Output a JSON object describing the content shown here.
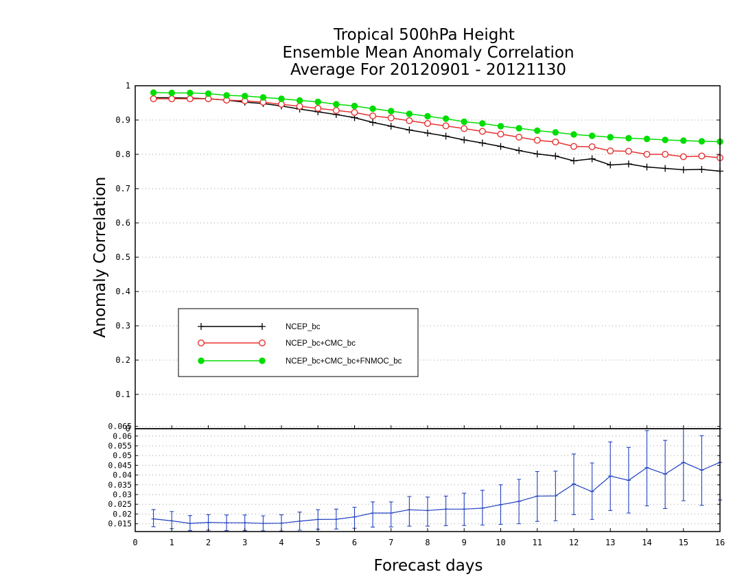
{
  "chart_data": [
    {
      "type": "line",
      "title_lines": [
        "Tropical 500hPa Height",
        "Ensemble Mean Anomaly Correlation",
        "Average For 20120901 - 20121130"
      ],
      "xlabel": "Forecast days",
      "ylabel": "Anomaly Correlation",
      "xlim": [
        0,
        16
      ],
      "ylim": [
        0,
        1
      ],
      "xticks": [
        "0",
        "1",
        "2",
        "3",
        "4",
        "5",
        "6",
        "7",
        "8",
        "9",
        "10",
        "11",
        "12",
        "13",
        "14",
        "15",
        "16"
      ],
      "yticks": [
        "0",
        "0.1",
        "0.2",
        "0.3",
        "0.4",
        "0.5",
        "0.6",
        "0.7",
        "0.8",
        "0.9",
        "1"
      ],
      "grid": true,
      "legend_position": "lower-left",
      "x": [
        0.5,
        1,
        1.5,
        2,
        2.5,
        3,
        3.5,
        4,
        4.5,
        5,
        5.5,
        6,
        6.5,
        7,
        7.5,
        8,
        8.5,
        9,
        9.5,
        10,
        10.5,
        11,
        11.5,
        12,
        12.5,
        13,
        13.5,
        14,
        14.5,
        15,
        15.5,
        16
      ],
      "series": [
        {
          "name": "NCEP_bc",
          "color": "#000000",
          "marker": "plus",
          "values": [
            0.965,
            0.965,
            0.964,
            0.962,
            0.958,
            0.952,
            0.948,
            0.941,
            0.932,
            0.924,
            0.916,
            0.907,
            0.893,
            0.882,
            0.871,
            0.862,
            0.853,
            0.842,
            0.833,
            0.823,
            0.811,
            0.801,
            0.795,
            0.781,
            0.787,
            0.769,
            0.772,
            0.763,
            0.759,
            0.755,
            0.756,
            0.751
          ]
        },
        {
          "name": "NCEP_bc+CMC_bc",
          "color": "#e83030",
          "marker": "open-circle",
          "values": [
            0.962,
            0.962,
            0.962,
            0.962,
            0.958,
            0.956,
            0.952,
            0.946,
            0.94,
            0.934,
            0.928,
            0.922,
            0.912,
            0.906,
            0.898,
            0.89,
            0.883,
            0.875,
            0.867,
            0.859,
            0.85,
            0.841,
            0.836,
            0.823,
            0.822,
            0.81,
            0.809,
            0.8,
            0.8,
            0.793,
            0.795,
            0.79
          ]
        },
        {
          "name": "NCEP_bc+CMC_bc+FNMOC_bc",
          "color": "#00dd00",
          "marker": "filled-circle",
          "values": [
            0.98,
            0.979,
            0.979,
            0.977,
            0.972,
            0.97,
            0.966,
            0.962,
            0.957,
            0.953,
            0.946,
            0.941,
            0.933,
            0.926,
            0.918,
            0.911,
            0.904,
            0.895,
            0.89,
            0.882,
            0.876,
            0.869,
            0.864,
            0.858,
            0.854,
            0.85,
            0.847,
            0.845,
            0.842,
            0.84,
            0.838,
            0.837
          ]
        }
      ]
    },
    {
      "type": "line",
      "xlim": [
        0,
        16
      ],
      "ylim": [
        0.011,
        0.0638
      ],
      "yticks": [
        "0.015",
        "0.02",
        "0.025",
        "0.03",
        "0.035",
        "0.04",
        "0.045",
        "0.05",
        "0.055",
        "0.06",
        "0.065"
      ],
      "grid": true,
      "x": [
        0.5,
        1,
        1.5,
        2,
        2.5,
        3,
        3.5,
        4,
        4.5,
        5,
        5.5,
        6,
        6.5,
        7,
        7.5,
        8,
        8.5,
        9,
        9.5,
        10,
        10.5,
        11,
        11.5,
        12,
        12.5,
        13,
        13.5,
        14,
        14.5,
        15,
        15.5,
        16
      ],
      "series": [
        {
          "color": "#2040c0",
          "marker": "error-bars",
          "values": [
            0.0175,
            0.0165,
            0.0152,
            0.0157,
            0.0155,
            0.0155,
            0.0152,
            0.0153,
            0.0163,
            0.0172,
            0.0173,
            0.0185,
            0.0205,
            0.0205,
            0.0222,
            0.0218,
            0.0225,
            0.0225,
            0.023,
            0.0248,
            0.0265,
            0.0292,
            0.0293,
            0.0354,
            0.0315,
            0.0395,
            0.0373,
            0.0438,
            0.0405,
            0.0465,
            0.0425,
            0.0465
          ],
          "error_low": [
            0.0135,
            0.0125,
            0.0115,
            0.0117,
            0.0115,
            0.0115,
            0.0114,
            0.0113,
            0.0117,
            0.0122,
            0.0123,
            0.0127,
            0.0133,
            0.0134,
            0.0138,
            0.0138,
            0.014,
            0.0141,
            0.0143,
            0.0147,
            0.015,
            0.0162,
            0.0165,
            0.0197,
            0.0172,
            0.0218,
            0.0205,
            0.0242,
            0.0228,
            0.0268,
            0.0245,
            0.0272
          ],
          "error_high": [
            0.0223,
            0.0213,
            0.0192,
            0.0197,
            0.0195,
            0.0195,
            0.0191,
            0.0196,
            0.021,
            0.0222,
            0.0225,
            0.0235,
            0.0262,
            0.0262,
            0.029,
            0.0287,
            0.0292,
            0.0307,
            0.0322,
            0.035,
            0.0378,
            0.0418,
            0.042,
            0.0508,
            0.0462,
            0.057,
            0.0542,
            0.0628,
            0.0578,
            0.0648,
            0.0602,
            0.0655
          ]
        }
      ]
    }
  ]
}
